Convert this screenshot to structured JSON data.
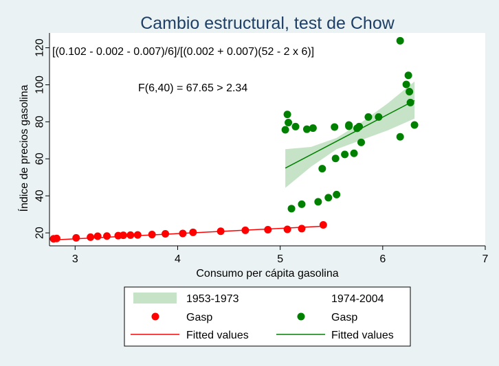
{
  "chart_data": {
    "type": "scatter",
    "title": "Cambio estructural, test de Chow",
    "xlabel": "Consumo per cápita gasolina",
    "ylabel": "Índice de precios gasolina",
    "xlim": [
      2.75,
      7.0
    ],
    "ylim": [
      13,
      128
    ],
    "x_ticks": [
      "3",
      "4",
      "5",
      "6",
      "7"
    ],
    "y_ticks": [
      "20",
      "40",
      "60",
      "80",
      "100",
      "120"
    ],
    "annotations": [
      "[(0.102 - 0.002 - 0.007)/6]/[(0.002 + 0.007)(52 - 2 x 6)]",
      "F(6,40) = 67.65 > 2.34"
    ],
    "legend_headers": [
      "1953-1973",
      "1974-2004"
    ],
    "series": [
      {
        "name": "Gasp",
        "period": "1953-1973",
        "color": "#ff0000",
        "points": [
          [
            2.79,
            16.8
          ],
          [
            2.82,
            17.0
          ],
          [
            3.01,
            17.3
          ],
          [
            3.15,
            17.7
          ],
          [
            3.22,
            18.2
          ],
          [
            3.31,
            18.3
          ],
          [
            3.42,
            18.5
          ],
          [
            3.47,
            18.7
          ],
          [
            3.54,
            18.8
          ],
          [
            3.61,
            18.9
          ],
          [
            3.75,
            19.1
          ],
          [
            3.88,
            19.5
          ],
          [
            4.05,
            19.7
          ],
          [
            4.15,
            20.3
          ],
          [
            4.42,
            20.9
          ],
          [
            4.66,
            21.4
          ],
          [
            4.88,
            21.7
          ],
          [
            5.07,
            21.9
          ],
          [
            5.21,
            22.3
          ],
          [
            5.42,
            24.3
          ]
        ]
      },
      {
        "name": "Gasp",
        "period": "1974-2004",
        "color": "#008000",
        "points": [
          [
            5.05,
            75.7
          ],
          [
            5.07,
            84.0
          ],
          [
            5.08,
            79.6
          ],
          [
            5.15,
            77.4
          ],
          [
            5.26,
            76.0
          ],
          [
            5.32,
            76.6
          ],
          [
            5.11,
            33.1
          ],
          [
            5.21,
            35.5
          ],
          [
            5.37,
            36.8
          ],
          [
            5.47,
            39.0
          ],
          [
            5.55,
            40.7
          ],
          [
            5.41,
            54.7
          ],
          [
            5.54,
            60.2
          ],
          [
            5.63,
            62.4
          ],
          [
            5.67,
            77.6
          ],
          [
            5.67,
            78.3
          ],
          [
            5.72,
            63.0
          ],
          [
            5.75,
            76.5
          ],
          [
            5.77,
            77.4
          ],
          [
            5.79,
            68.9
          ],
          [
            5.86,
            82.6
          ],
          [
            5.96,
            82.6
          ],
          [
            6.17,
            71.9
          ],
          [
            6.17,
            123.8
          ],
          [
            6.23,
            100.2
          ],
          [
            6.25,
            105.1
          ],
          [
            6.26,
            96.3
          ],
          [
            6.27,
            90.4
          ],
          [
            6.31,
            78.3
          ],
          [
            5.53,
            77.2
          ]
        ]
      }
    ],
    "fitted": [
      {
        "name": "Fitted values",
        "period": "1953-1973",
        "color": "#ff0000",
        "x": [
          2.79,
          5.42
        ],
        "y": [
          16.2,
          23.6
        ]
      },
      {
        "name": "Fitted values",
        "period": "1974-2004",
        "color": "#008000",
        "x": [
          5.05,
          6.31
        ],
        "y": [
          55.0,
          91.5
        ]
      }
    ],
    "ci_band": {
      "name": "1953-1973",
      "color": "#c7e3c7",
      "x": [
        5.05,
        5.3,
        5.55,
        5.8,
        6.05,
        6.31
      ],
      "upper": [
        65.2,
        66.4,
        71.3,
        80.0,
        90.0,
        101.8
      ],
      "lower": [
        44.3,
        55.7,
        65.2,
        70.3,
        75.4,
        81.7
      ]
    },
    "legend": {
      "position": "bottom",
      "entries": [
        {
          "label": "1953-1973",
          "type": "band",
          "color": "#c7e3c7"
        },
        {
          "label": "1974-2004",
          "type": "header",
          "color": ""
        },
        {
          "label": "Gasp",
          "type": "marker",
          "color": "#ff0000"
        },
        {
          "label": "Gasp",
          "type": "marker",
          "color": "#008000"
        },
        {
          "label": "Fitted values",
          "type": "line",
          "color": "#ff0000"
        },
        {
          "label": "Fitted values",
          "type": "line",
          "color": "#008000"
        }
      ]
    },
    "grid": false,
    "colors": {
      "background": "#eaf2f3",
      "plot_area": "#ffffff",
      "title": "#1e3f66"
    }
  }
}
